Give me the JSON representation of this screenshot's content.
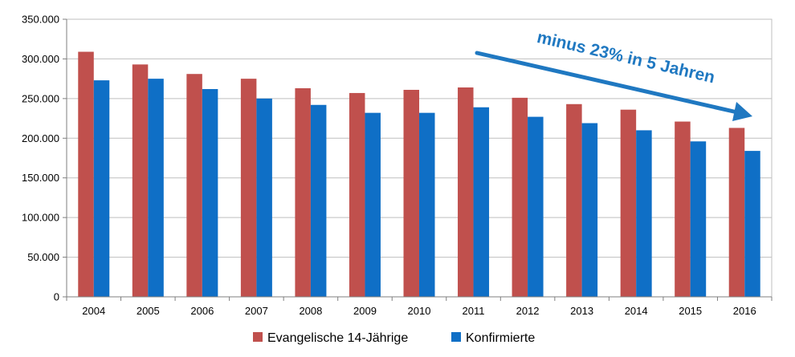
{
  "chart_data": {
    "type": "bar",
    "categories": [
      "2004",
      "2005",
      "2006",
      "2007",
      "2008",
      "2009",
      "2010",
      "2011",
      "2012",
      "2013",
      "2014",
      "2015",
      "2016"
    ],
    "series": [
      {
        "name": "Evangelische 14-Jährige",
        "color": "#c0504d",
        "values": [
          309000,
          293000,
          281000,
          275000,
          263000,
          257000,
          261000,
          264000,
          251000,
          243000,
          236000,
          221000,
          213000
        ]
      },
      {
        "name": "Konfirmierte",
        "color": "#0f6fc6",
        "values": [
          273000,
          275000,
          262000,
          250000,
          242000,
          232000,
          232000,
          239000,
          227000,
          219000,
          210000,
          196000,
          184000
        ]
      }
    ],
    "ylim": [
      0,
      350000
    ],
    "yticks": [
      0,
      50000,
      100000,
      150000,
      200000,
      250000,
      300000,
      350000
    ],
    "ytick_labels": [
      "0",
      "50.000",
      "100.000",
      "150.000",
      "200.000",
      "250.000",
      "300.000",
      "350.000"
    ],
    "grid": true,
    "legend": "bottom",
    "annotation": {
      "text": "minus 23% in 5 Jahren",
      "color": "#1f78c1"
    }
  }
}
